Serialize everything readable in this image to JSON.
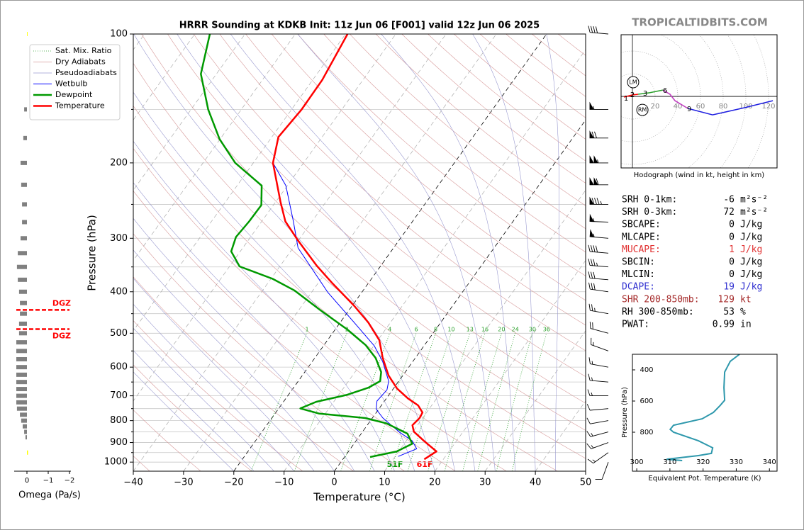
{
  "watermark": "TROPICALTIDBITS.COM",
  "chart_data": [
    {
      "type": "skewt",
      "title": "HRRR Sounding at KDKB Init: 11z Jun 06 [F001] valid 12z Jun 06 2025",
      "xlabel": "Temperature (°C)",
      "ylabel": "Pressure (hPa)",
      "xlim": [
        -40,
        50
      ],
      "xticks": [
        {
          "value": -40,
          "label": "−40"
        },
        {
          "value": -30,
          "label": "−30"
        },
        {
          "value": -20,
          "label": "−20"
        },
        {
          "value": -10,
          "label": "−10"
        },
        0,
        10,
        20,
        30,
        40,
        50
      ],
      "ylim": [
        1050,
        100
      ],
      "log_scale": true,
      "yticks": [
        100,
        200,
        300,
        400,
        500,
        600,
        700,
        800,
        900,
        1000
      ],
      "yminor": [
        150,
        250,
        350,
        450,
        550,
        650,
        750,
        850,
        950
      ],
      "grid": true,
      "legend": "upper left",
      "highlight_isotherms": [
        0,
        -20
      ],
      "mixing_ratios": [
        1,
        2,
        4,
        6,
        8,
        10,
        13,
        16,
        20,
        24,
        30,
        36
      ],
      "reference_lines": [
        {
          "name": "Sat. Mix. Ratio",
          "color": "#2ca02c",
          "dash": "1,2"
        },
        {
          "name": "Dry Adiabats",
          "color": "#d79a9a",
          "dash": "none"
        },
        {
          "name": "Pseudoadiabats",
          "color": "#9a9ad0",
          "dash": "none"
        }
      ],
      "series": [
        {
          "name": "Wetbulb",
          "color": "#0000ff",
          "linewidth": 1,
          "pressure": [
            970,
            931,
            892,
            851,
            789,
            752,
            720,
            678,
            647,
            582,
            535,
            472,
            401,
            316,
            274,
            226,
            200,
            174,
            150,
            128,
            100
          ],
          "temperature": [
            10.6,
            13.2,
            11.2,
            7.4,
            2.1,
            -0.5,
            -1.5,
            -1.1,
            -2.0,
            -6.0,
            -9.9,
            -17.2,
            -26.8,
            -39.0,
            -43.7,
            -50.3,
            -56.1,
            -58.7,
            -58.0,
            -58.1,
            -59.6
          ]
        },
        {
          "name": "Dewpoint",
          "color": "#009900",
          "linewidth": 2.5,
          "pressure": [
            973,
            944,
            906,
            858,
            812,
            789,
            770,
            749,
            723,
            696,
            670,
            647,
            616,
            571,
            533,
            490,
            441,
            397,
            373,
            349,
            322,
            298,
            274,
            251,
            226,
            200,
            176,
            150,
            124,
            100
          ],
          "temperature": [
            5.1,
            9.6,
            11.6,
            9.2,
            3.6,
            -1.4,
            -11.3,
            -15.7,
            -13.5,
            -8.3,
            -5.1,
            -3.7,
            -4.8,
            -7.9,
            -11.7,
            -17.6,
            -25.8,
            -33.7,
            -39.7,
            -48.0,
            -51.8,
            -52.9,
            -52.5,
            -52.4,
            -55.1,
            -63.6,
            -70.1,
            -76.6,
            -83.1,
            -87.0
          ]
        },
        {
          "name": "Temperature",
          "color": "#ff0000",
          "linewidth": 2.5,
          "pressure": [
            985,
            944,
            892,
            849,
            820,
            789,
            766,
            737,
            710,
            673,
            628,
            571,
            519,
            472,
            432,
            383,
            348,
            304,
            274,
            247,
            200,
            174,
            150,
            128,
            100
          ],
          "temperature": [
            16.2,
            17.5,
            13.5,
            10.2,
            9.0,
            9.4,
            9.2,
            7.3,
            4.3,
            0.7,
            -2.8,
            -6.5,
            -9.7,
            -14.4,
            -19.5,
            -27.0,
            -32.7,
            -40.0,
            -45.3,
            -49.0,
            -56.1,
            -58.7,
            -58.0,
            -58.1,
            -59.6
          ]
        }
      ],
      "surface_labels": [
        {
          "text": "51F",
          "color": "#009900"
        },
        {
          "text": "61F",
          "color": "#ff0000"
        }
      ],
      "wind": {
        "pressure": [
          100,
          150,
          175,
          200,
          225,
          250,
          275,
          300,
          325,
          350,
          375,
          400,
          450,
          500,
          550,
          600,
          650,
          700,
          750,
          800,
          850,
          900,
          950,
          1000
        ],
        "speed": [
          40,
          55,
          70,
          105,
          110,
          85,
          55,
          55,
          40,
          35,
          30,
          30,
          25,
          20,
          15,
          15,
          15,
          15,
          10,
          10,
          15,
          15,
          15,
          10
        ],
        "direction": [
          275,
          270,
          270,
          270,
          270,
          270,
          272,
          275,
          275,
          275,
          275,
          278,
          280,
          285,
          290,
          280,
          275,
          270,
          265,
          260,
          255,
          250,
          235,
          200
        ]
      }
    },
    {
      "type": "omega",
      "xlabel": "Omega (Pa/s)",
      "xlim": [
        0.5,
        -2
      ],
      "xticks": [
        0,
        {
          "value": -1,
          "label": "−1"
        },
        {
          "value": -2,
          "label": "−2"
        }
      ],
      "color": "#808080",
      "negative_color": "#ffff00",
      "pressure": [
        100,
        150,
        175,
        200,
        225,
        250,
        275,
        300,
        325,
        350,
        375,
        400,
        425,
        450,
        475,
        500,
        525,
        550,
        575,
        600,
        625,
        650,
        675,
        700,
        725,
        750,
        775,
        800,
        825,
        850,
        875,
        950
      ],
      "values": [
        -0.03,
        0.13,
        0.17,
        0.3,
        0.27,
        0.23,
        0.23,
        0.3,
        0.43,
        0.47,
        0.43,
        0.37,
        0.33,
        0.33,
        0.37,
        0.37,
        0.5,
        0.5,
        0.5,
        0.5,
        0.5,
        0.5,
        0.5,
        0.5,
        0.5,
        0.47,
        0.33,
        0.27,
        0.2,
        0.13,
        0.07,
        -0.05
      ],
      "dgz": {
        "labels": [
          "DGZ",
          "DGZ"
        ],
        "pressure": [
          441,
          489
        ],
        "color": "#ff0000"
      }
    },
    {
      "type": "hodograph",
      "caption": "Hodograph (wind in kt, height in km)",
      "xlim": [
        -10,
        127.5
      ],
      "ylim": [
        -63.1,
        54.4
      ],
      "rings": [
        20,
        40,
        60,
        80,
        100,
        120
      ],
      "segments": [
        {
          "color": "#ff0000",
          "u": [
            -7.5,
            0,
            5
          ],
          "v": [
            -0.6,
            1.3,
            1.9
          ]
        },
        {
          "color": "#2ca02c",
          "u": [
            5,
            14.4,
            26.9
          ],
          "v": [
            1.9,
            3.1,
            5.6
          ]
        },
        {
          "color": "#c040c0",
          "u": [
            26.9,
            33.1,
            37.5,
            48.8
          ],
          "v": [
            5.6,
            1.9,
            -3.8,
            -10.6
          ]
        },
        {
          "color": "#2020e0",
          "u": [
            48.8,
            70.6,
            98.8,
            123.8
          ],
          "v": [
            -10.6,
            -16.3,
            -10,
            -3.8
          ]
        }
      ],
      "height_labels": [
        1,
        2,
        3,
        6,
        9
      ],
      "height_u": [
        -5.6,
        0,
        11.3,
        28.8,
        50
      ],
      "height_v": [
        -1.9,
        1.3,
        2.5,
        5,
        -11.3
      ],
      "storm_motion": {
        "labels": [
          "LM",
          "RM"
        ],
        "u": [
          0.6,
          8.8
        ],
        "v": [
          12.5,
          -11.9
        ]
      }
    },
    {
      "type": "line",
      "xlabel": "Equivalent Pot. Temperature (K)",
      "ylabel": "Pressure (hPa)",
      "xlim": [
        298.7,
        342.3
      ],
      "xticks": [
        300,
        310,
        320,
        330,
        340
      ],
      "ylim": [
        1050,
        300
      ],
      "yticks": [
        400,
        600,
        800
      ],
      "color": "#2e98ac",
      "x": [
        331.0,
        328.2,
        326.5,
        326.3,
        326.5,
        325.0,
        323.1,
        319.7,
        311.1,
        310.1,
        311.1,
        318.6,
        322.9,
        322.5,
        318.6,
        309.0,
        313.7
      ],
      "y": [
        300,
        345,
        414,
        514,
        595,
        632,
        673,
        714,
        755,
        782,
        800,
        855,
        900,
        936,
        950,
        973,
        982
      ]
    }
  ],
  "indices": [
    {
      "label": "SRH 0-1km:",
      "value": -6,
      "unit": "m²s⁻²",
      "color": "#000000"
    },
    {
      "label": "SRH 0-3km:",
      "value": 72,
      "unit": "m²s⁻²",
      "color": "#000000"
    },
    {
      "label": "SBCAPE:",
      "value": 0,
      "unit": "J/kg",
      "color": "#000000"
    },
    {
      "label": "MLCAPE:",
      "value": 0,
      "unit": "J/kg",
      "color": "#000000"
    },
    {
      "label": "MUCAPE:",
      "value": 1,
      "unit": "J/kg",
      "color": "#e03030"
    },
    {
      "label": "SBCIN:",
      "value": 0,
      "unit": "J/kg",
      "color": "#000000"
    },
    {
      "label": "MLCIN:",
      "value": 0,
      "unit": "J/kg",
      "color": "#000000"
    },
    {
      "label": "DCAPE:",
      "value": 19,
      "unit": "J/kg",
      "color": "#3030d0"
    },
    {
      "label": "SHR 200-850mb:",
      "value": 129,
      "unit": "kt",
      "color": "#a52a2a"
    },
    {
      "label": "RH 300-850mb:",
      "value": 53,
      "unit": "%",
      "color": "#000000"
    },
    {
      "label": "PWAT:",
      "value": 0.99,
      "unit": "in",
      "color": "#000000"
    }
  ]
}
